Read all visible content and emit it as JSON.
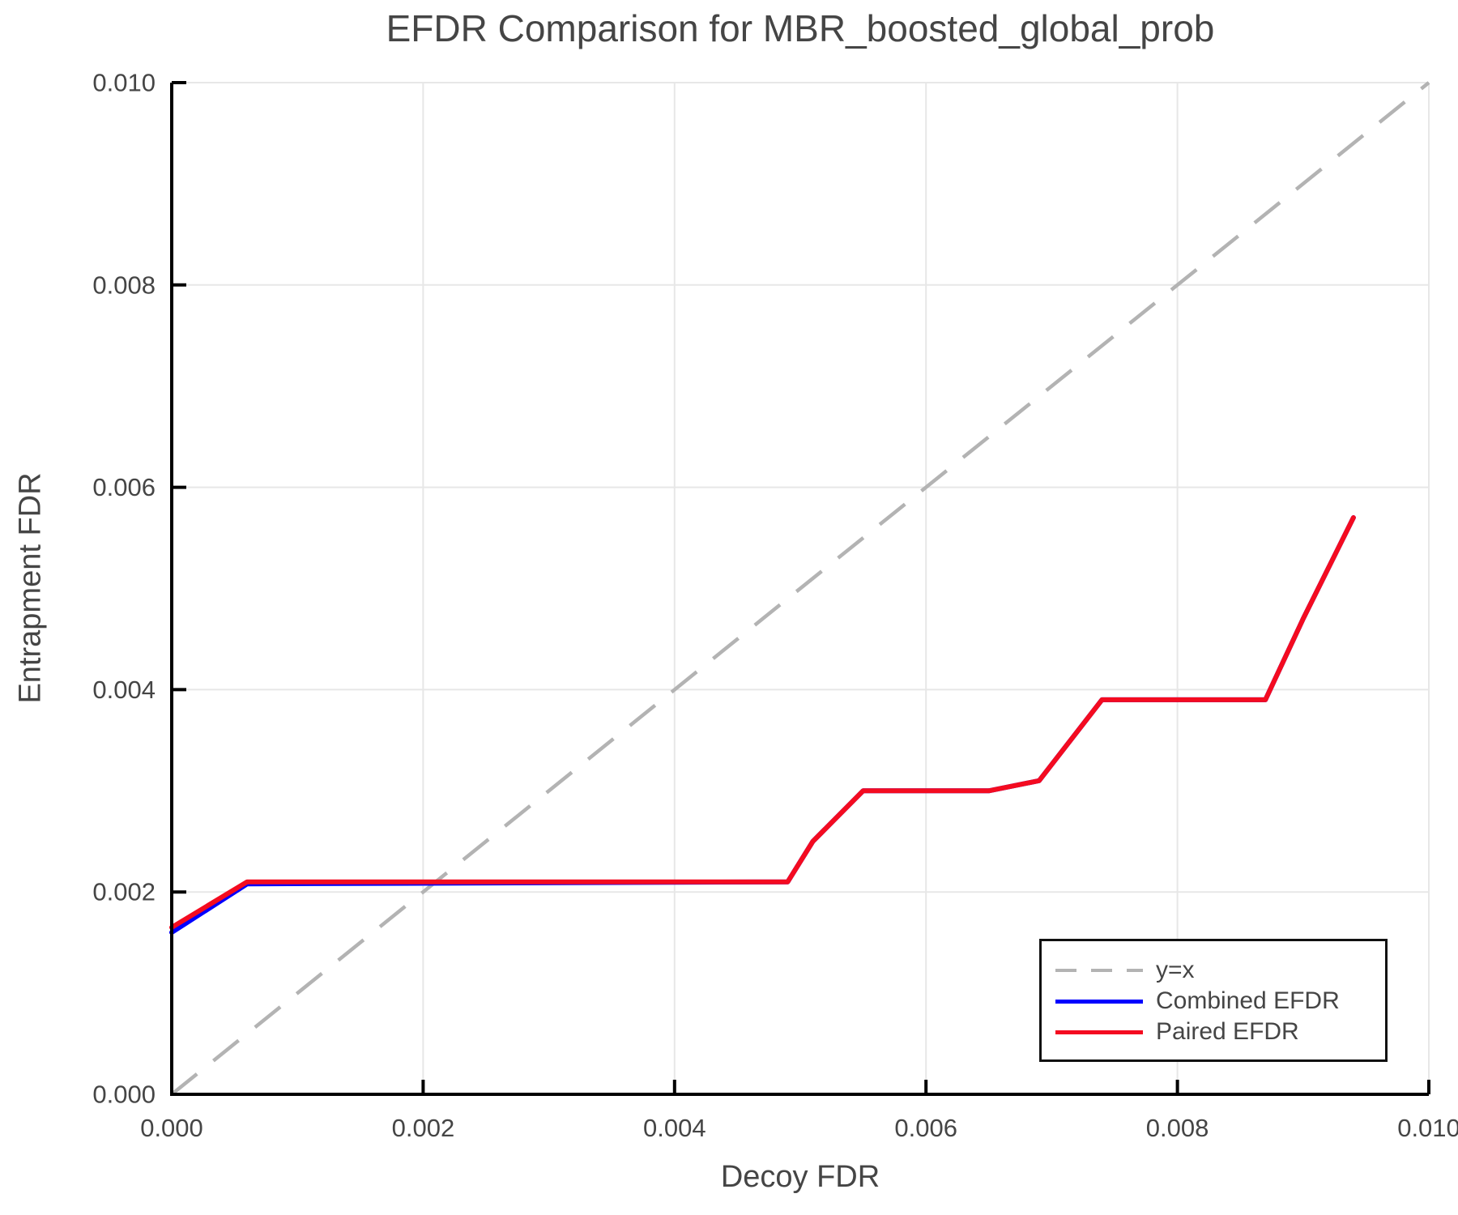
{
  "chart_data": {
    "type": "line",
    "title": "EFDR Comparison for MBR_boosted_global_prob",
    "xlabel": "Decoy FDR",
    "ylabel": "Entrapment FDR",
    "xlim": [
      0.0,
      0.01
    ],
    "ylim": [
      0.0,
      0.01
    ],
    "xtick_values": [
      0.0,
      0.002,
      0.004,
      0.006,
      0.008,
      0.01
    ],
    "xtick_labels": [
      "0.000",
      "0.002",
      "0.004",
      "0.006",
      "0.008",
      "0.010"
    ],
    "ytick_values": [
      0.0,
      0.002,
      0.004,
      0.006,
      0.008,
      0.01
    ],
    "ytick_labels": [
      "0.000",
      "0.002",
      "0.004",
      "0.006",
      "0.008",
      "0.010"
    ],
    "grid": true,
    "legend_position": "lower right",
    "colors": {
      "grid": "#e7e7e7",
      "spine": "#000000",
      "text": "#454545",
      "reference": "#b3b3b3",
      "combined": "#0000ff",
      "paired": "#f40b20"
    },
    "series": [
      {
        "name": "y=x",
        "color": "#b3b3b3",
        "style": "dashed",
        "points": [
          [
            0.0,
            0.0
          ],
          [
            0.01,
            0.01
          ]
        ]
      },
      {
        "name": "Combined EFDR",
        "color": "#0000ff",
        "style": "solid",
        "points": [
          [
            0.0,
            0.0016
          ],
          [
            0.0006,
            0.00208
          ],
          [
            0.0049,
            0.0021
          ],
          [
            0.0051,
            0.0025
          ],
          [
            0.0055,
            0.003
          ],
          [
            0.0065,
            0.003
          ],
          [
            0.0069,
            0.0031
          ],
          [
            0.0074,
            0.0039
          ],
          [
            0.0087,
            0.0039
          ],
          [
            0.009,
            0.0047
          ],
          [
            0.0094,
            0.0057
          ]
        ]
      },
      {
        "name": "Paired EFDR",
        "color": "#f40b20",
        "style": "solid",
        "points": [
          [
            0.0,
            0.00165
          ],
          [
            0.0006,
            0.0021
          ],
          [
            0.0049,
            0.0021
          ],
          [
            0.0051,
            0.0025
          ],
          [
            0.0055,
            0.003
          ],
          [
            0.0065,
            0.003
          ],
          [
            0.0069,
            0.0031
          ],
          [
            0.0074,
            0.0039
          ],
          [
            0.0087,
            0.0039
          ],
          [
            0.009,
            0.0047
          ],
          [
            0.0094,
            0.0057
          ]
        ]
      }
    ]
  }
}
